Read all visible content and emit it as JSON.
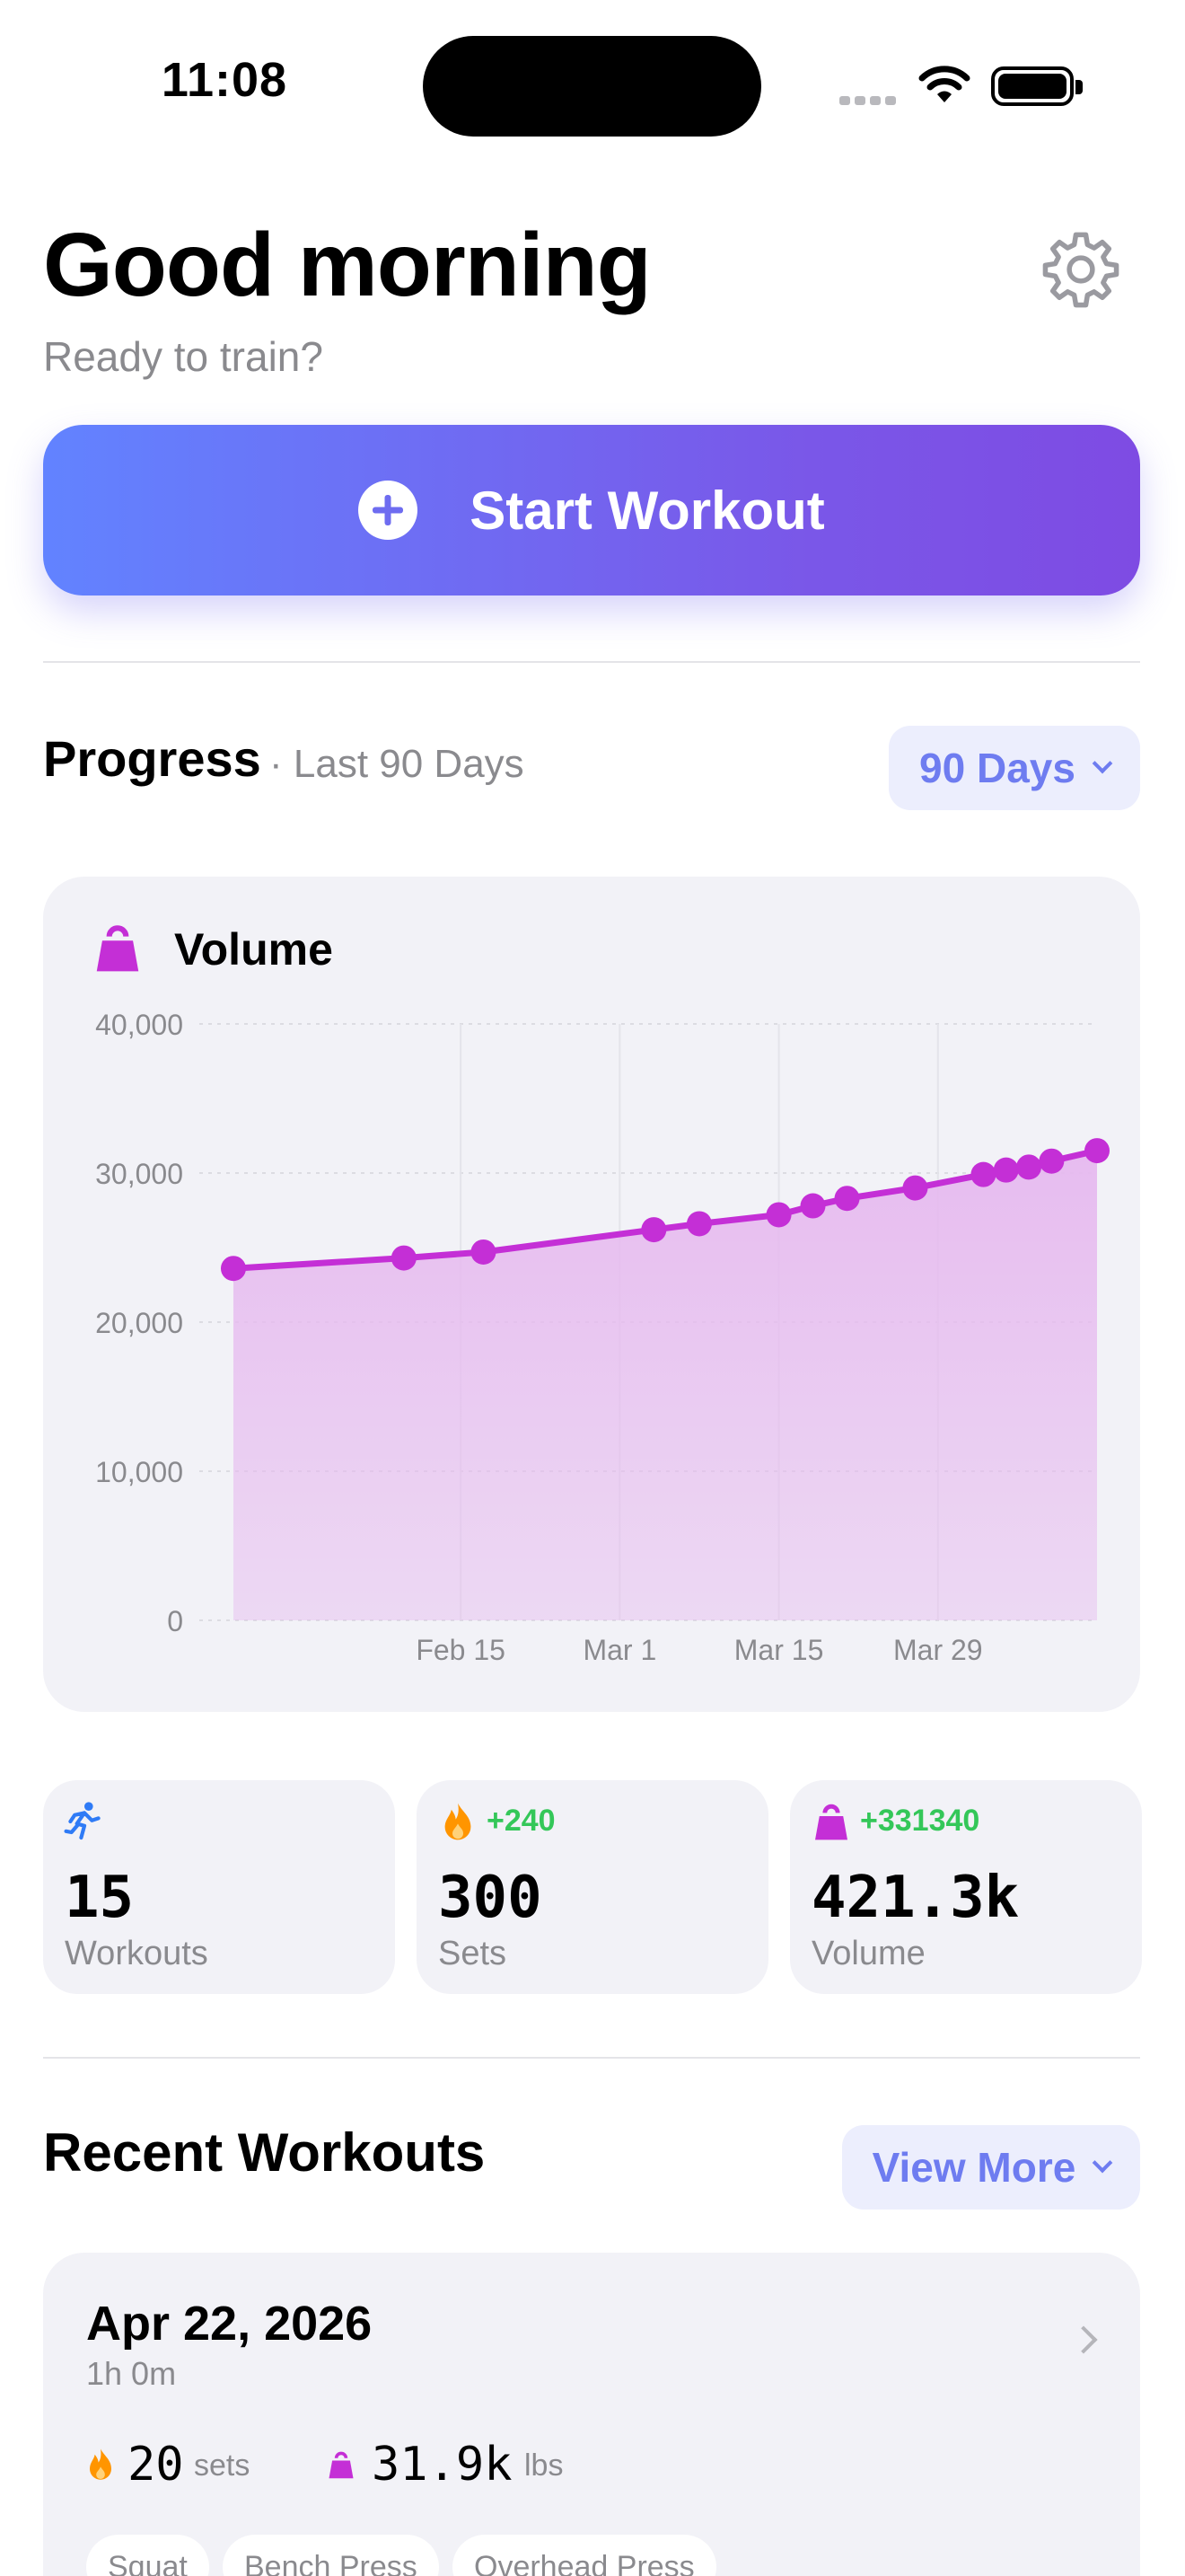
{
  "status_bar": {
    "time": "11:08"
  },
  "header": {
    "greeting": "Good morning",
    "subtitle": "Ready to train?"
  },
  "start_button": {
    "label": "Start Workout"
  },
  "progress": {
    "title": "Progress",
    "subtitle": "· Last 90 Days",
    "range_label": "90 Days"
  },
  "chart_data": {
    "type": "area",
    "title": "Volume",
    "xlabel": "",
    "ylabel": "",
    "ylim": [
      0,
      40000
    ],
    "yticks": [
      "0",
      "10,000",
      "20,000",
      "30,000",
      "40,000"
    ],
    "xticks": [
      "Feb 15",
      "Mar 1",
      "Mar 15",
      "Mar 29"
    ],
    "x": [
      "Jan 26",
      "Feb 10",
      "Feb 17",
      "Mar 4",
      "Mar 8",
      "Mar 15",
      "Mar 18",
      "Mar 21",
      "Mar 27",
      "Apr 2",
      "Apr 4",
      "Apr 6",
      "Apr 8",
      "Apr 12"
    ],
    "values": [
      23600,
      24300,
      24700,
      26200,
      26600,
      27200,
      27800,
      28300,
      29000,
      29900,
      30200,
      30400,
      30800,
      31500
    ],
    "grid": true,
    "color": "#c42fd6",
    "fill_color": "#e6b9ef"
  },
  "stats": [
    {
      "icon": "running-figure-icon",
      "delta": "",
      "value": "15",
      "caption": "Workouts"
    },
    {
      "icon": "flame-icon",
      "delta": "+240",
      "value": "300",
      "caption": "Sets"
    },
    {
      "icon": "kettlebell-icon",
      "delta": "+331340",
      "value": "421.3k",
      "caption": "Volume"
    }
  ],
  "recent": {
    "title": "Recent Workouts",
    "view_more_label": "View More",
    "workouts": [
      {
        "date": "Apr 22, 2026",
        "duration": "1h 0m",
        "sets_value": "20",
        "sets_unit": "sets",
        "volume_value": "31.9k",
        "volume_unit": "lbs",
        "tags": [
          "Squat",
          "Bench Press",
          "Overhead Press"
        ]
      }
    ]
  },
  "colors": {
    "accent": "#6e7cf0",
    "gradient_start": "#6283ff",
    "gradient_end": "#7e4be3",
    "volume": "#c42fd6",
    "positive": "#34c759",
    "flame": "#ff9500",
    "running": "#2f7bf6"
  }
}
